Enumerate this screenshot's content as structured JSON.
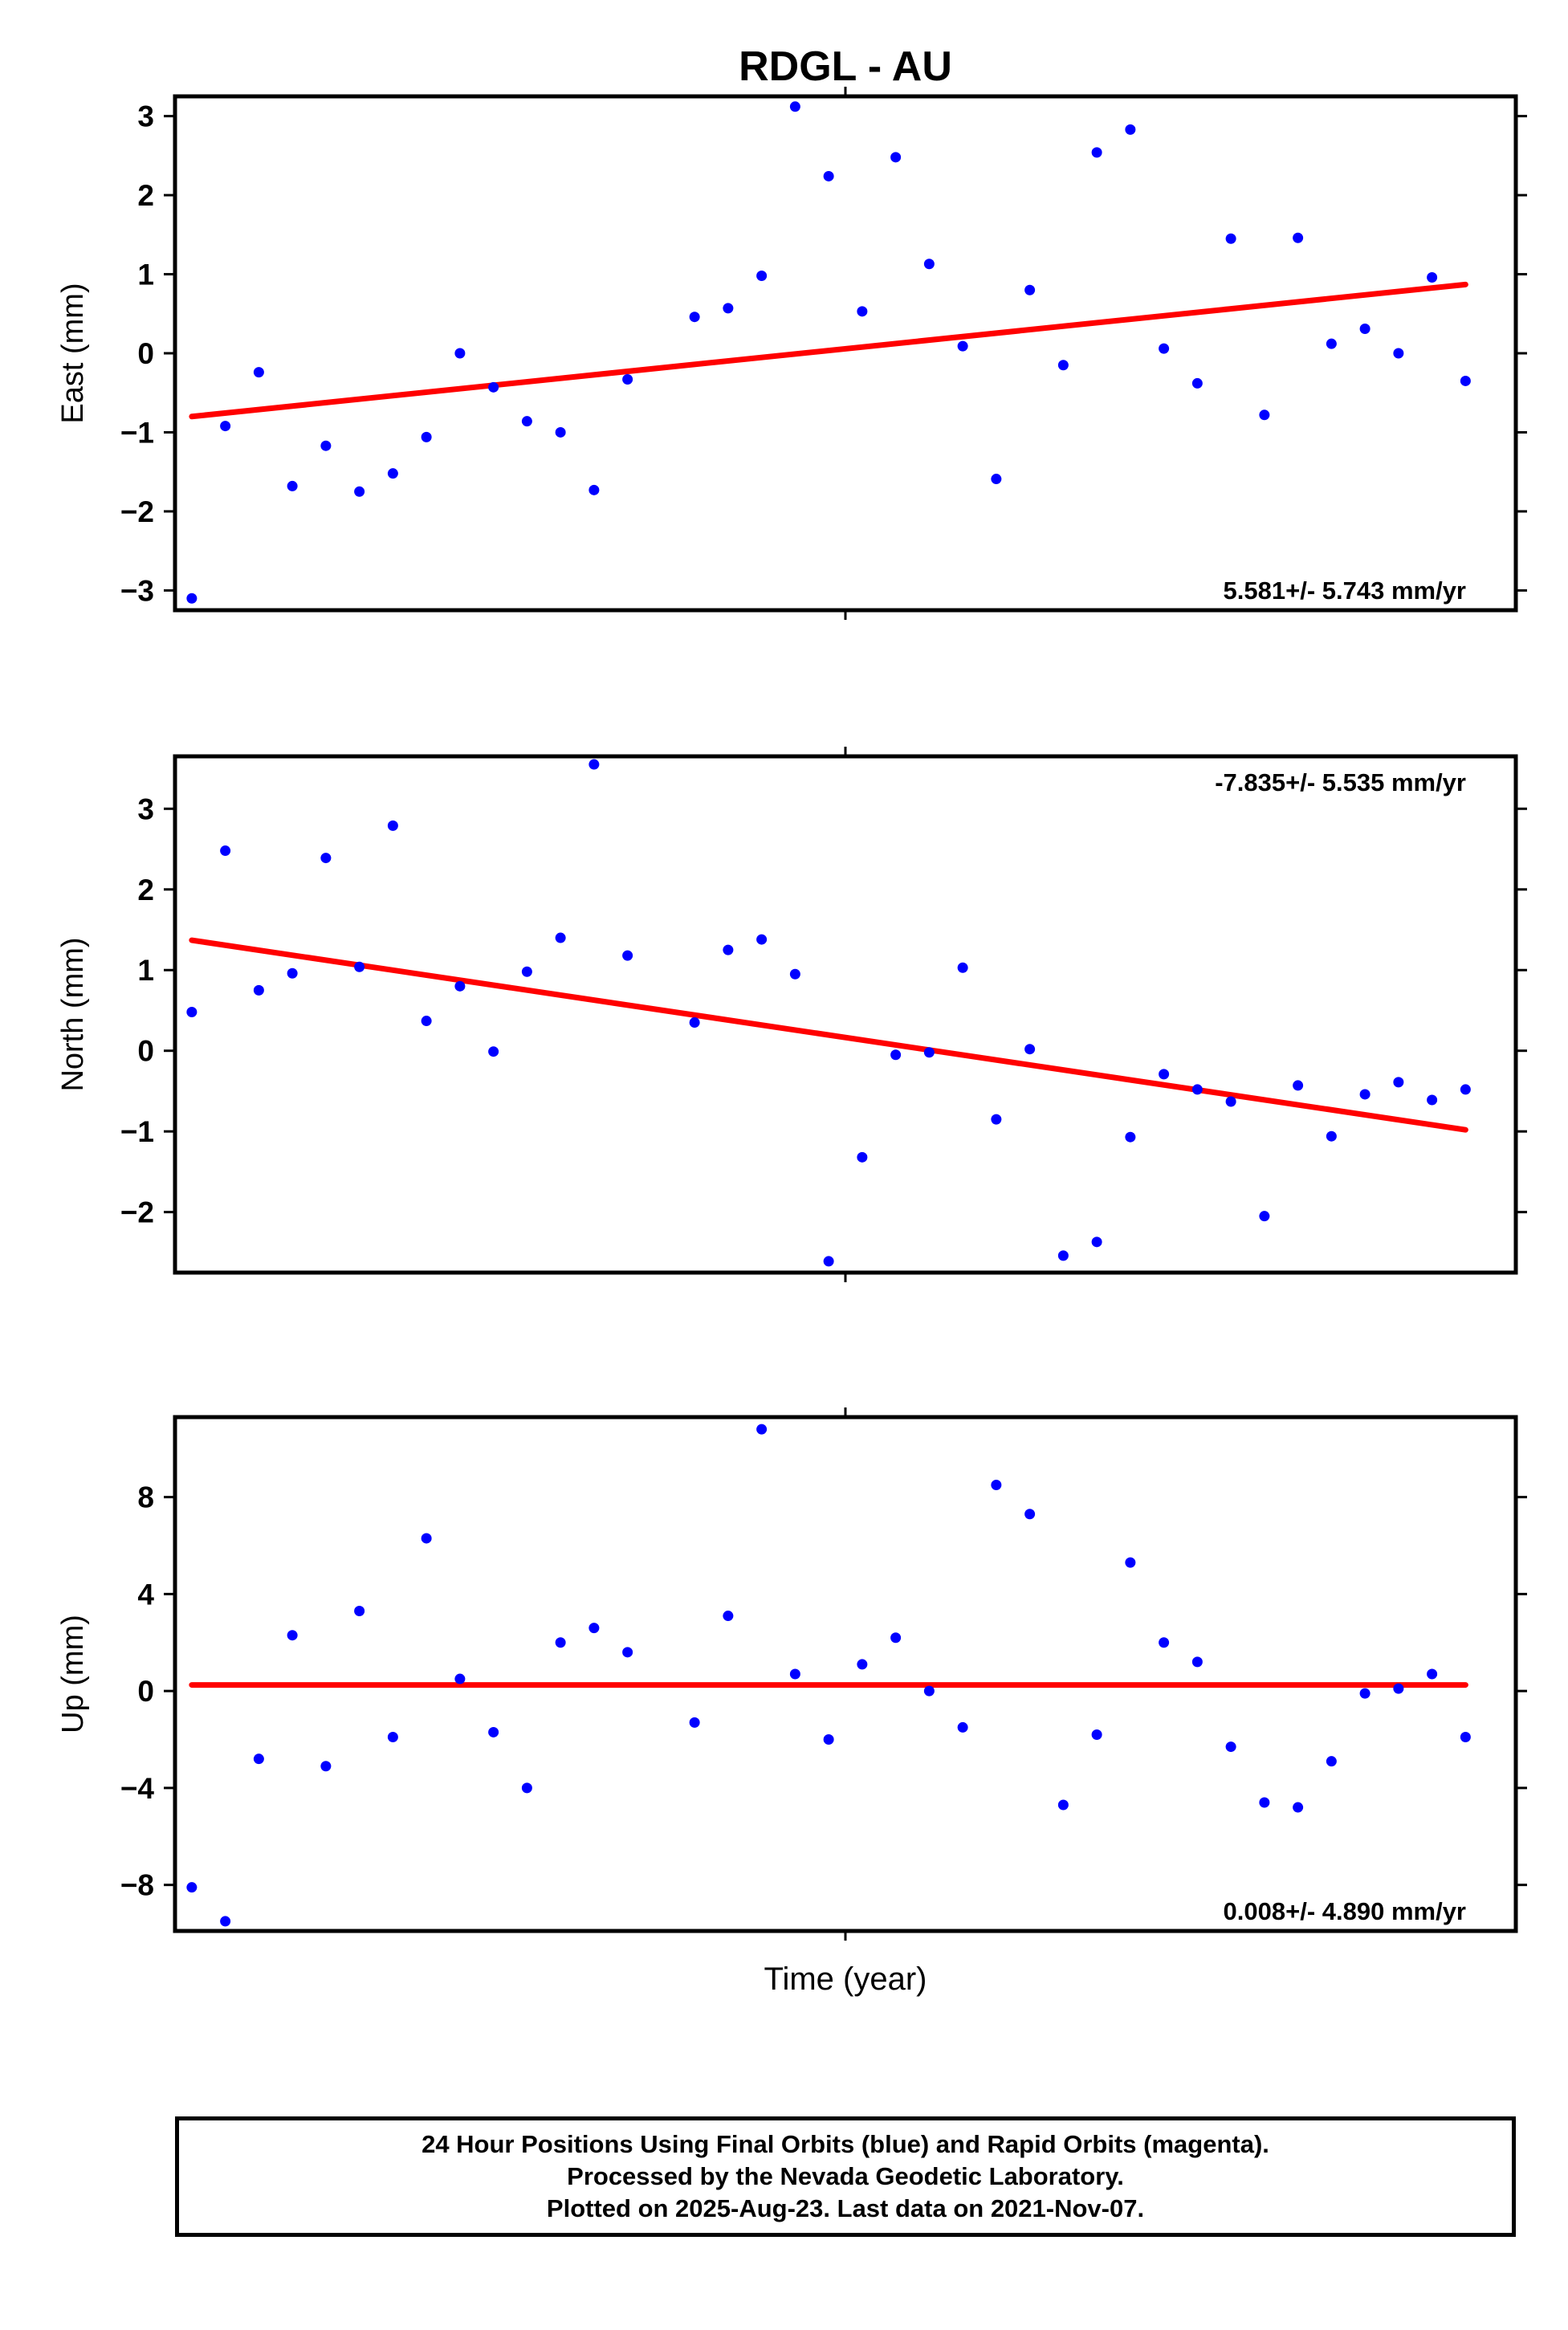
{
  "title": "RDGL - AU",
  "x_axis_label": "Time (year)",
  "colors": {
    "points": "#0000ff",
    "trend": "#ff0000",
    "frame": "#000000"
  },
  "footer": {
    "line1": "24 Hour Positions Using Final Orbits (blue) and Rapid Orbits (magenta).",
    "line2": "Processed by the Nevada Geodetic Laboratory.",
    "line3": "Plotted on 2025-Aug-23. Last data on 2021-Nov-07."
  },
  "chart_data": [
    {
      "type": "scatter",
      "ylabel": "East (mm)",
      "ylim": [
        -3.25,
        3.25
      ],
      "yticks": [
        -3,
        -2,
        -1,
        0,
        1,
        2,
        3
      ],
      "rate_label": "5.581+/- 5.743 mm/yr",
      "rate_position": "bottom-right",
      "x": [
        0.5,
        1.5,
        2.5,
        3.5,
        4.5,
        5.5,
        6.5,
        7.5,
        8.5,
        9.5,
        10.5,
        11.5,
        12.5,
        13.5,
        15.5,
        16.5,
        17.5,
        18.5,
        19.5,
        20.5,
        21.5,
        22.5,
        23.5,
        24.5,
        25.5,
        26.5,
        27.5,
        28.5,
        29.5,
        30.5,
        31.5,
        32.5,
        33.5,
        34.5,
        35.5,
        36.5,
        37.5,
        38.5
      ],
      "values": [
        -3.1,
        -0.92,
        -0.24,
        -1.68,
        -1.17,
        -1.75,
        -1.52,
        -1.06,
        0.0,
        -0.43,
        -0.86,
        -1.0,
        -1.73,
        -0.33,
        0.46,
        0.57,
        0.98,
        3.12,
        2.24,
        0.53,
        2.48,
        1.13,
        0.09,
        -1.59,
        0.8,
        -0.15,
        2.54,
        2.83,
        0.06,
        -0.38,
        1.45,
        -0.78,
        1.46,
        0.12,
        0.31,
        0.0,
        0.96,
        -0.35
      ],
      "trend": {
        "x": [
          0.5,
          38.5
        ],
        "y": [
          -0.8,
          0.87
        ]
      }
    },
    {
      "type": "scatter",
      "ylabel": "North (mm)",
      "ylim": [
        -2.75,
        3.65
      ],
      "yticks": [
        -2,
        -1,
        0,
        1,
        2,
        3
      ],
      "rate_label": "-7.835+/- 5.535 mm/yr",
      "rate_position": "top-right",
      "x": [
        0.5,
        1.5,
        2.5,
        3.5,
        4.5,
        5.5,
        6.5,
        7.5,
        8.5,
        9.5,
        10.5,
        11.5,
        12.5,
        13.5,
        15.5,
        16.5,
        17.5,
        18.5,
        19.5,
        20.5,
        21.5,
        22.5,
        23.5,
        24.5,
        25.5,
        26.5,
        27.5,
        28.5,
        29.5,
        30.5,
        31.5,
        32.5,
        33.5,
        34.5,
        35.5,
        36.5,
        37.5,
        38.5
      ],
      "values": [
        0.48,
        2.48,
        0.75,
        0.96,
        2.39,
        1.04,
        2.79,
        0.37,
        0.8,
        -0.01,
        0.98,
        1.4,
        3.55,
        1.18,
        0.35,
        1.25,
        1.38,
        0.95,
        -2.61,
        -1.32,
        -0.05,
        -0.02,
        1.03,
        -0.85,
        0.02,
        -2.54,
        -2.37,
        -1.07,
        -0.29,
        -0.48,
        -0.63,
        -2.05,
        -0.43,
        -1.06,
        -0.54,
        -0.39,
        -0.61,
        -0.48
      ],
      "trend": {
        "x": [
          0.5,
          38.5
        ],
        "y": [
          1.37,
          -0.98
        ]
      }
    },
    {
      "type": "scatter",
      "ylabel": "Up (mm)",
      "ylim": [
        -9.9,
        11.3
      ],
      "yticks": [
        -8,
        -4,
        0,
        4,
        8
      ],
      "rate_label": "0.008+/- 4.890 mm/yr",
      "rate_position": "bottom-right",
      "x": [
        0.5,
        1.5,
        2.5,
        3.5,
        4.5,
        5.5,
        6.5,
        7.5,
        8.5,
        9.5,
        10.5,
        11.5,
        12.5,
        13.5,
        15.5,
        16.5,
        17.5,
        18.5,
        19.5,
        20.5,
        21.5,
        22.5,
        23.5,
        24.5,
        25.5,
        26.5,
        27.5,
        28.5,
        29.5,
        30.5,
        31.5,
        32.5,
        33.5,
        34.5,
        35.5,
        36.5,
        37.5,
        38.5
      ],
      "values": [
        -8.1,
        -9.5,
        -2.8,
        2.3,
        -3.1,
        3.3,
        -1.9,
        6.3,
        0.5,
        -1.7,
        -4.0,
        2.0,
        2.6,
        1.6,
        -1.3,
        3.1,
        10.8,
        0.7,
        -2.0,
        1.1,
        2.2,
        0.0,
        -1.5,
        8.5,
        7.3,
        -4.7,
        -1.8,
        5.3,
        2.0,
        1.2,
        -2.3,
        -4.6,
        -4.8,
        -2.9,
        -0.1,
        0.1,
        0.7,
        -1.9
      ],
      "trend": {
        "x": [
          0.5,
          38.5
        ],
        "y": [
          0.25,
          0.25
        ]
      }
    }
  ]
}
